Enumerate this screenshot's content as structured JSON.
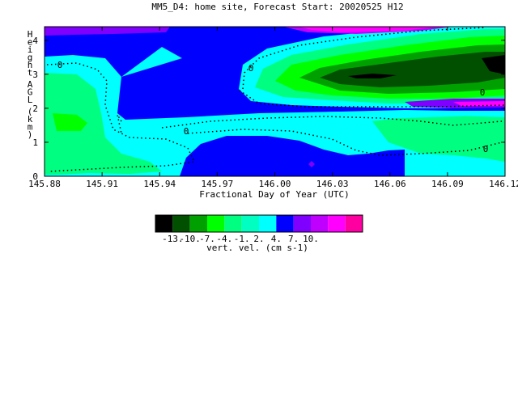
{
  "chart_data": {
    "type": "heatmap",
    "title": "MM5_D4: home site,  Forecast Start: 20020525 H12",
    "xlabel": "Fractional Day of Year (UTC)",
    "ylabel": "Height AGL (km)",
    "xlim": [
      145.88,
      146.12
    ],
    "ylim": [
      0,
      4.4
    ],
    "x_ticks": [
      "145.88",
      "145.91",
      "145.94",
      "145.97",
      "146.00",
      "146.03",
      "146.06",
      "146.09",
      "146.12"
    ],
    "y_ticks": [
      "0",
      "1",
      "2",
      "3",
      "4"
    ],
    "colorbar": {
      "label": "vert. vel. (cm s-1)",
      "tick_labels": [
        "-13.",
        "-10.",
        "-7.",
        "-4.",
        "-1.",
        "2.",
        "4.",
        "7.",
        "10."
      ],
      "colors": [
        "#000000",
        "#005000",
        "#00a000",
        "#00ff00",
        "#00ff80",
        "#00ffc0",
        "#00ffff",
        "#0000ff",
        "#8000ff",
        "#c000ff",
        "#ff00ff",
        "#ff00a0"
      ]
    },
    "zero_contour_label": "0",
    "regions": [
      {
        "level": "2 to 4",
        "color": "#0000ff",
        "x": 146.0,
        "y": 2.2
      },
      {
        "level": "-1 to 2",
        "color": "#00ffff",
        "x": 145.89,
        "y": 2.2
      },
      {
        "level": "-4 to -1",
        "color": "#00ff80",
        "x": 145.89,
        "y": 1.6
      },
      {
        "level": "-7 to -4",
        "color": "#00ff00",
        "x": 146.05,
        "y": 2.7
      },
      {
        "level": "-13 to -10",
        "color": "#005000",
        "x": 146.08,
        "y": 2.8
      },
      {
        "level": "< -13",
        "color": "#000000",
        "x": 146.06,
        "y": 2.75
      },
      {
        "level": "4 to 10",
        "color": "#ff00ff",
        "x": 146.05,
        "y": 4.2
      },
      {
        "level": "4 to 7",
        "color": "#8000ff",
        "x": 146.09,
        "y": 2.1
      }
    ]
  }
}
